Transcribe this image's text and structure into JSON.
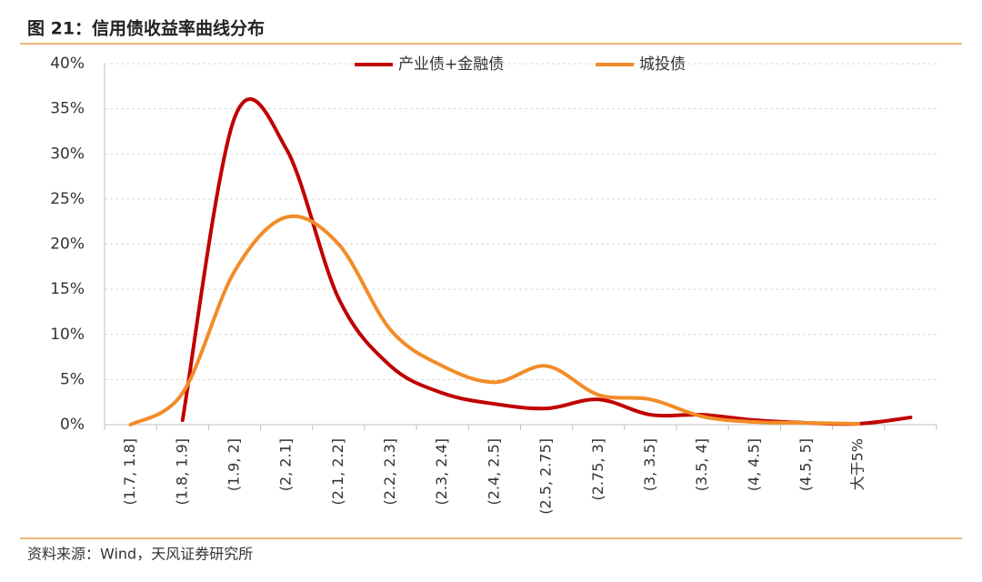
{
  "chart_data": {
    "type": "line",
    "title": "图 21：信用债收益率曲线分布",
    "source": "资料来源：Wind，天风证券研究所",
    "categories": [
      "(1.7, 1.8]",
      "(1.8, 1.9]",
      "(1.9, 2]",
      "(2, 2.1]",
      "(2.1, 2.2]",
      "(2.2, 2.3]",
      "(2.3, 2.4]",
      "(2.4, 2.5]",
      "(2.5, 2.75]",
      "(2.75, 3]",
      "(3, 3.5]",
      "(3.5, 4]",
      "(4, 4.5]",
      "(4.5, 5]",
      "大于5%",
      null
    ],
    "series": [
      {
        "name": "产业债+金融债",
        "color": "#c00000",
        "values": [
          null,
          0.5,
          34,
          30.5,
          14,
          6.5,
          3.5,
          2.3,
          1.8,
          2.8,
          1.1,
          1.1,
          0.5,
          0.2,
          0.1,
          0.8
        ]
      },
      {
        "name": "城投债",
        "color": "#f28c28",
        "values": [
          0,
          3.5,
          17,
          23,
          20,
          10.5,
          6.5,
          4.7,
          6.5,
          3.3,
          2.8,
          0.9,
          0.3,
          0.2,
          0.1,
          null
        ]
      }
    ],
    "ylim": [
      0,
      40
    ],
    "yticks": [
      {
        "value": 0,
        "label": "0%"
      },
      {
        "value": 5,
        "label": "5%"
      },
      {
        "value": 10,
        "label": "10%"
      },
      {
        "value": 15,
        "label": "15%"
      },
      {
        "value": 20,
        "label": "20%"
      },
      {
        "value": 25,
        "label": "25%"
      },
      {
        "value": 30,
        "label": "30%"
      },
      {
        "value": 35,
        "label": "35%"
      },
      {
        "value": 40,
        "label": "40%"
      }
    ],
    "grid": true,
    "smooth": true,
    "legend": "top"
  }
}
